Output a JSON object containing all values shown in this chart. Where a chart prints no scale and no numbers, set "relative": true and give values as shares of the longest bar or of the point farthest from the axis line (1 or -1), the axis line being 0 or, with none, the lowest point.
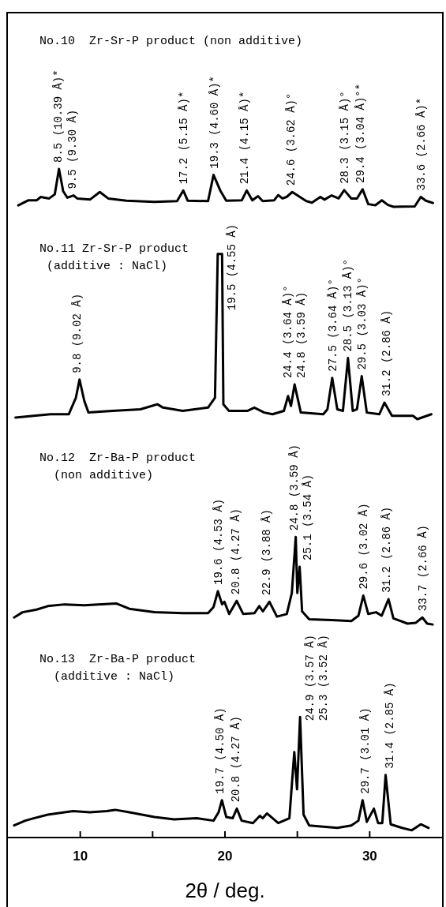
{
  "chart_data": [
    {
      "type": "line",
      "relative": true,
      "title": "No.10  Zr-Sr-P product (non additive)",
      "xlim": [
        5,
        35
      ],
      "tick_labels": false,
      "series": [
        {
          "color": "#000000",
          "x": [
            5.72,
            6.4,
            6.98,
            7.27,
            7.85,
            8.24,
            8.53,
            8.82,
            9.11,
            9.54,
            9.79,
            10.67,
            11.35,
            11.93,
            13.19,
            15.13,
            16.69,
            17.12,
            17.43,
            18.83,
            19.21,
            19.7,
            20.09,
            21.16,
            21.5,
            21.89,
            22.28,
            22.61,
            23.39,
            23.68,
            23.97,
            24.26,
            24.65,
            25.62,
            26.01,
            26.59,
            26.88,
            27.37,
            27.85,
            28.24,
            28.73,
            29.12,
            29.51,
            29.9,
            30.39,
            30.84,
            31.26,
            31.65,
            33.11,
            33.53,
            33.88,
            34.37
          ],
          "values": [
            0.04,
            0.17,
            0.17,
            0.26,
            0.22,
            0.33,
            1,
            0.41,
            0.24,
            0.3,
            0.22,
            0.19,
            0.39,
            0.22,
            0.16,
            0.13,
            0.15,
            0.43,
            0.16,
            0.15,
            0.84,
            0.41,
            0.16,
            0.17,
            0.43,
            0.17,
            0.28,
            0.15,
            0.17,
            0.31,
            0.22,
            0.26,
            0.39,
            0.15,
            0.11,
            0.26,
            0.19,
            0.3,
            0.22,
            0.44,
            0.22,
            0.22,
            0.46,
            0.07,
            0.04,
            0.17,
            0.05,
            0,
            0.01,
            0.26,
            0.16,
            0.1
          ]
        }
      ],
      "annotations": [
        {
          "text": "8.5 (10.39 Å)*",
          "x": 8.5,
          "y": 1
        },
        {
          "text": "9.5 (9.30 Å)",
          "x": 9.5,
          "y": 0.3
        },
        {
          "text": "17.2 (5.15 Å)*",
          "x": 17.2,
          "y": 0.43
        },
        {
          "text": "19.3 (4.60 Å)*",
          "x": 19.3,
          "y": 0.84
        },
        {
          "text": "21.4 (4.15 Å)*",
          "x": 21.4,
          "y": 0.43
        },
        {
          "text": "24.6 (3.62 Å)°",
          "x": 24.6,
          "y": 0.39
        },
        {
          "text": "28.3 (3.15 Å)°",
          "x": 28.3,
          "y": 0.44
        },
        {
          "text": "29.4 (3.04 Å)°*",
          "x": 29.4,
          "y": 0.46
        },
        {
          "text": "33.6 (2.66 Å)*",
          "x": 33.6,
          "y": 0.26
        }
      ]
    },
    {
      "type": "line",
      "relative": true,
      "title": "No.11 Zr-Sr-P product\n (additive : NaCl)",
      "xlim": [
        5,
        35
      ],
      "tick_labels": false,
      "series": [
        {
          "color": "#000000",
          "x": [
            5.52,
            6.78,
            7.95,
            9.21,
            9.7,
            9.95,
            10.28,
            10.57,
            12.22,
            14.16,
            14.94,
            15.33,
            15.72,
            17.08,
            18.83,
            19.31,
            19.5,
            19.8,
            19.89,
            20.28,
            21.54,
            22.03,
            22.71,
            23.29,
            24.07,
            24.36,
            24.56,
            24.81,
            25.24,
            26.79,
            27.08,
            27.41,
            27.76,
            28.15,
            28.5,
            28.83,
            29.12,
            29.45,
            29.8,
            30.67,
            31.02,
            31.54,
            32.99,
            33.29,
            34.26
          ],
          "values": [
            0.01,
            0.02,
            0.03,
            0.03,
            0.13,
            0.24,
            0.11,
            0.04,
            0.05,
            0.06,
            0.08,
            0.09,
            0.07,
            0.05,
            0.07,
            0.13,
            1,
            1,
            0.09,
            0.05,
            0.05,
            0.07,
            0.04,
            0.03,
            0.05,
            0.14,
            0.08,
            0.21,
            0.04,
            0.03,
            0.06,
            0.25,
            0.06,
            0.05,
            0.37,
            0.05,
            0.06,
            0.26,
            0.04,
            0.03,
            0.1,
            0.02,
            0.02,
            0,
            0.03
          ]
        }
      ],
      "annotations": [
        {
          "text": "9.8 (9.02 Å)",
          "x": 9.8,
          "y": 0.24
        },
        {
          "text": "19.5 (4.55 Å)",
          "x": 19.5,
          "y": 1
        },
        {
          "text": "24.4 (3.64 Å)°",
          "x": 24.4,
          "y": 0.14
        },
        {
          "text": "24.8 (3.59 Å)",
          "x": 24.8,
          "y": 0.21
        },
        {
          "text": "27.5 (3.64 Å)°",
          "x": 27.5,
          "y": 0.25
        },
        {
          "text": "28.5 (3.13 Å)°",
          "x": 28.5,
          "y": 0.37
        },
        {
          "text": "29.5 (3.03 Å)°",
          "x": 29.5,
          "y": 0.26
        },
        {
          "text": "31.2 (2.86 Å)",
          "x": 31.2,
          "y": 0.1
        }
      ]
    },
    {
      "type": "line",
      "relative": true,
      "title": "No.12  Zr-Ba-P product\n  (non additive)",
      "xlim": [
        5,
        35
      ],
      "tick_labels": false,
      "series": [
        {
          "color": "#000000",
          "x": [
            5.43,
            6.01,
            6.98,
            7.76,
            8.92,
            10.28,
            11.25,
            12.51,
            13.39,
            15.13,
            17.08,
            18.83,
            19.21,
            19.51,
            19.8,
            19.96,
            20.29,
            20.81,
            21.26,
            22.04,
            22.37,
            22.62,
            23.07,
            23.59,
            24.27,
            24.62,
            24.89,
            25.0,
            25.16,
            25.33,
            25.82,
            27.37,
            28.73,
            29.22,
            29.56,
            29.9,
            30.44,
            30.83,
            31.3,
            31.64,
            32.61,
            33.19,
            33.64,
            33.97,
            34.35
          ],
          "values": [
            0.08,
            0.14,
            0.17,
            0.21,
            0.23,
            0.22,
            0.23,
            0.24,
            0.18,
            0.14,
            0.13,
            0.13,
            0.2,
            0.38,
            0.23,
            0.26,
            0.12,
            0.27,
            0.12,
            0.13,
            0.21,
            0.15,
            0.26,
            0.09,
            0.12,
            0.36,
            1,
            0.36,
            0.66,
            0.15,
            0.06,
            0.05,
            0.04,
            0.1,
            0.33,
            0.12,
            0.14,
            0.1,
            0.29,
            0.07,
            0.01,
            0.02,
            0.08,
            0.01,
            0
          ]
        }
      ],
      "annotations": [
        {
          "text": "19.6 (4.53 Å)",
          "x": 19.6,
          "y": 0.38
        },
        {
          "text": "20.8 (4.27 Å)",
          "x": 20.8,
          "y": 0.27
        },
        {
          "text": "22.9 (3.88 Å)",
          "x": 22.9,
          "y": 0.26
        },
        {
          "text": "24.8 (3.59 Å)",
          "x": 24.8,
          "y": 1
        },
        {
          "text": "25.1 (3.54 Å)",
          "x": 25.1,
          "y": 0.66
        },
        {
          "text": "29.6 (3.02 Å)",
          "x": 29.6,
          "y": 0.33
        },
        {
          "text": "31.2 (2.86 Å)",
          "x": 31.2,
          "y": 0.29
        },
        {
          "text": "33.7 (2.66 Å)",
          "x": 33.7,
          "y": 0.08
        }
      ]
    },
    {
      "type": "line",
      "relative": true,
      "title": "No.13  Zr-Ba-P product\n  (additive : NaCl)",
      "xlim": [
        5,
        35
      ],
      "xticks": [
        10,
        {
          "value": 15,
          "label": null
        },
        20,
        {
          "value": 25,
          "label": null
        },
        30
      ],
      "xlabel": "2θ / deg.",
      "series": [
        {
          "color": "#000000",
          "x": [
            5.43,
            6.2,
            6.78,
            7.76,
            9.5,
            10.67,
            11.83,
            12.41,
            13.39,
            15.13,
            16.49,
            18.04,
            19.21,
            19.56,
            19.79,
            20.09,
            20.53,
            20.82,
            21.15,
            21.93,
            22.41,
            22.61,
            22.9,
            23.68,
            24.45,
            24.79,
            24.98,
            25.19,
            25.43,
            25.82,
            27.76,
            28.73,
            29.22,
            29.51,
            29.8,
            30.29,
            30.58,
            30.87,
            31.1,
            31.45,
            32.23,
            32.91,
            33.53,
            34.07
          ],
          "values": [
            0.1,
            0.14,
            0.16,
            0.19,
            0.22,
            0.21,
            0.22,
            0.23,
            0.21,
            0.17,
            0.15,
            0.16,
            0.14,
            0.21,
            0.31,
            0.17,
            0.16,
            0.24,
            0.14,
            0.12,
            0.18,
            0.16,
            0.2,
            0.12,
            0.16,
            0.71,
            0.4,
            1,
            0.19,
            0.1,
            0.08,
            0.1,
            0.14,
            0.31,
            0.13,
            0.24,
            0.12,
            0.12,
            0.52,
            0.11,
            0.08,
            0.06,
            0.11,
            0.08
          ]
        }
      ],
      "annotations": [
        {
          "text": "19.7 (4.50 Å)",
          "x": 19.7,
          "y": 0.31
        },
        {
          "text": "20.8 (4.27 Å)",
          "x": 20.8,
          "y": 0.24
        },
        {
          "text": "24.9 (3.57 Å)",
          "x": 24.9,
          "y": 0.71
        },
        {
          "text": "25.3 (3.52 Å)",
          "x": 25.3,
          "y": 1
        },
        {
          "text": "29.7 (3.01 Å)",
          "x": 29.7,
          "y": 0.31
        },
        {
          "text": "31.4 (2.85 Å)",
          "x": 31.4,
          "y": 0.52
        }
      ]
    }
  ]
}
